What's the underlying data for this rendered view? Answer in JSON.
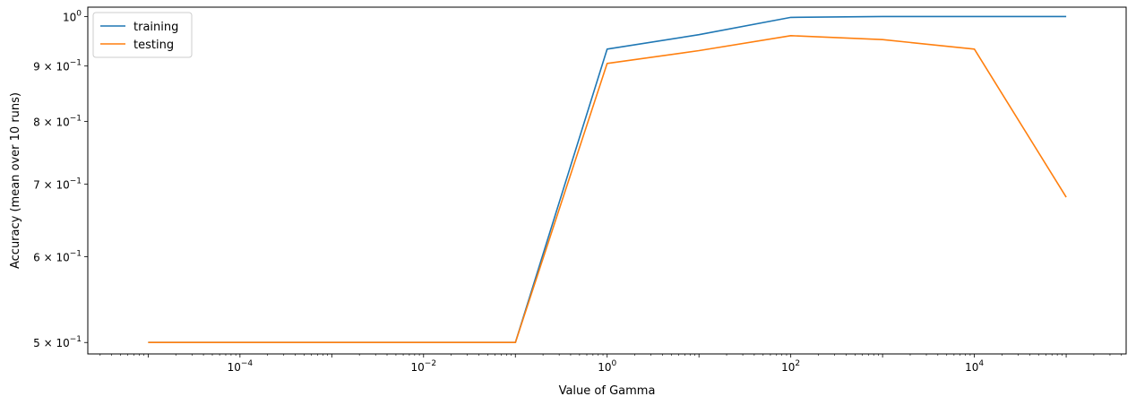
{
  "chart_data": {
    "type": "line",
    "xlabel": "Value of Gamma",
    "ylabel": "Accuracy (mean over 10 runs)",
    "xscale": "log",
    "yscale": "log",
    "xlim": [
      2.2e-06,
      450000.0
    ],
    "ylim": [
      0.488,
      1.02
    ],
    "grid": false,
    "legend_position": "top-left",
    "x": [
      1e-05,
      0.0001,
      0.001,
      0.01,
      0.1,
      1.0,
      10.0,
      100.0,
      1000.0,
      10000.0,
      100000.0
    ],
    "series": [
      {
        "name": "training",
        "color": "#1f77b4",
        "values": [
          0.5,
          0.5,
          0.5,
          0.5,
          0.5,
          0.933,
          0.962,
          0.998,
          1.0,
          1.0,
          1.0
        ]
      },
      {
        "name": "testing",
        "color": "#ff7f0e",
        "values": [
          0.5,
          0.5,
          0.5,
          0.5,
          0.5,
          0.905,
          0.93,
          0.96,
          0.952,
          0.933,
          0.681
        ]
      }
    ],
    "x_ticks": [
      {
        "value": 0.0001,
        "mant": "10",
        "exp": "−4"
      },
      {
        "value": 0.01,
        "mant": "10",
        "exp": "−2"
      },
      {
        "value": 1.0,
        "mant": "10",
        "exp": "0"
      },
      {
        "value": 100.0,
        "mant": "10",
        "exp": "2"
      },
      {
        "value": 10000.0,
        "mant": "10",
        "exp": "4"
      }
    ],
    "y_ticks": [
      {
        "value": 1.0,
        "mant": "10",
        "exp": "0"
      },
      {
        "value": 0.9,
        "mant": "9 × 10",
        "exp": "−1"
      },
      {
        "value": 0.8,
        "mant": "8 × 10",
        "exp": "−1"
      },
      {
        "value": 0.7,
        "mant": "7 × 10",
        "exp": "−1"
      },
      {
        "value": 0.6,
        "mant": "6 × 10",
        "exp": "−1"
      },
      {
        "value": 0.5,
        "mant": "5 × 10",
        "exp": "−1"
      }
    ]
  }
}
